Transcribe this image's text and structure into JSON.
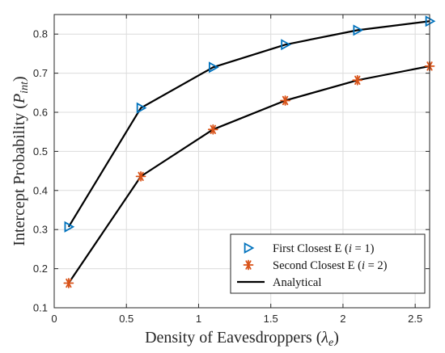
{
  "chart_data": {
    "type": "line",
    "xlabel": "Density of Eavesdroppers (λe)",
    "ylabel": "Intercept Probability (Pint)",
    "xlim": [
      0,
      2.6
    ],
    "ylim": [
      0.1,
      0.85
    ],
    "x_ticks": [
      "0",
      "0.5",
      "1",
      "1.5",
      "2",
      "2.5"
    ],
    "y_ticks": [
      "0.1",
      "0.2",
      "0.3",
      "0.4",
      "0.5",
      "0.6",
      "0.7",
      "0.8"
    ],
    "grid": true,
    "legend_position": "bottom-right",
    "series": [
      {
        "name": "First Closest E (i = 1)",
        "marker": "triangle-right",
        "color": "#0072BD",
        "x": [
          0.1,
          0.6,
          1.1,
          1.6,
          2.1,
          2.6
        ],
        "values": [
          0.307,
          0.611,
          0.715,
          0.773,
          0.81,
          0.833
        ]
      },
      {
        "name": "Second Closest E (i = 2)",
        "marker": "asterisk",
        "color": "#D95319",
        "x": [
          0.1,
          0.6,
          1.1,
          1.6,
          2.1,
          2.6
        ],
        "values": [
          0.163,
          0.436,
          0.556,
          0.63,
          0.682,
          0.718
        ]
      },
      {
        "name": "Analytical",
        "marker": "none",
        "color": "#000000",
        "curves": [
          {
            "x": [
              0.1,
              0.6,
              1.1,
              1.6,
              2.1,
              2.6
            ],
            "values": [
              0.307,
              0.611,
              0.715,
              0.773,
              0.81,
              0.833
            ]
          },
          {
            "x": [
              0.1,
              0.6,
              1.1,
              1.6,
              2.1,
              2.6
            ],
            "values": [
              0.163,
              0.436,
              0.556,
              0.63,
              0.682,
              0.718
            ]
          }
        ]
      }
    ],
    "legend": {
      "entries": [
        {
          "prefix": "First Closest E (",
          "var": "i",
          "suffix": " = 1)"
        },
        {
          "prefix": "Second Closest E (",
          "var": "i",
          "suffix": " = 2)"
        },
        {
          "prefix": "Analytical",
          "var": "",
          "suffix": ""
        }
      ]
    },
    "ylabel_parts": {
      "main": "Intercept Probability (",
      "var": "P",
      "sub": "int",
      "close": ")"
    },
    "xlabel_parts": {
      "main": "Density of Eavesdroppers (",
      "var": "λ",
      "sub": "e",
      "close": ")"
    }
  }
}
